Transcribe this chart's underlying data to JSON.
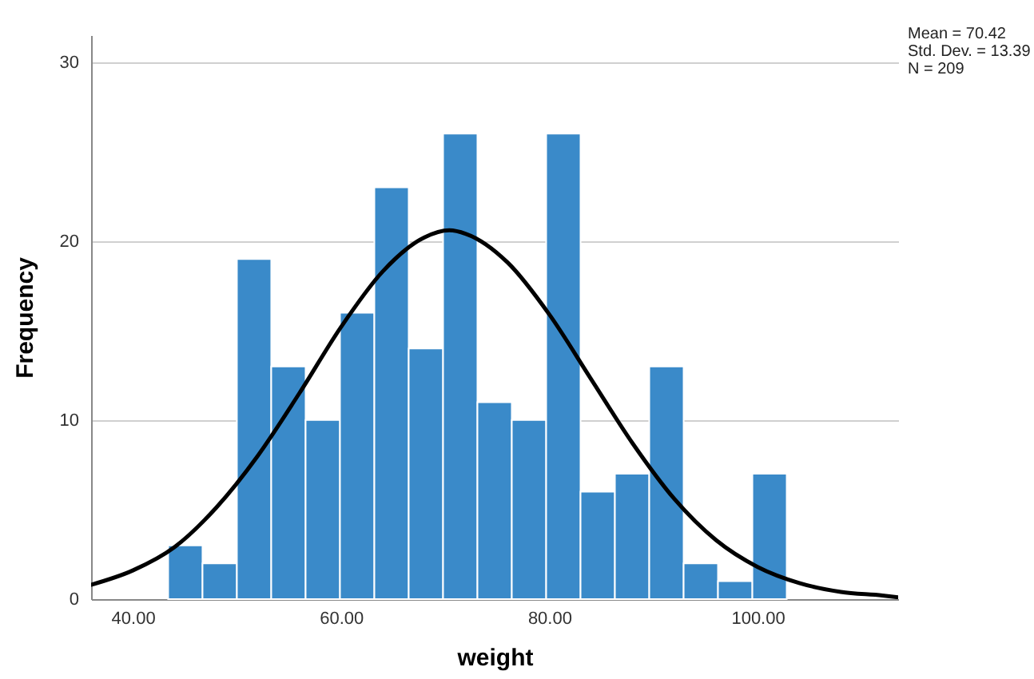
{
  "chart_data": {
    "type": "histogram",
    "xlabel": "weight",
    "ylabel": "Frequency",
    "annotations": [
      "Mean = 70.42",
      "Std. Dev. = 13.39",
      "N = 209"
    ],
    "bins": [
      43.4,
      46.7,
      50.0,
      53.3,
      56.6,
      59.9,
      63.2,
      66.5,
      69.8,
      73.1,
      76.4,
      79.7,
      83.0,
      86.3,
      89.6,
      92.9,
      96.2,
      99.5,
      102.8
    ],
    "series": [
      {
        "color": "#3a8ac9",
        "values": [
          3,
          2,
          19,
          13,
          10,
          16,
          23,
          14,
          26,
          11,
          10,
          26,
          6,
          7,
          13,
          2,
          1,
          7
        ]
      },
      {
        "type": "line",
        "color": "#000000",
        "x": [
          36,
          40,
          44,
          48,
          52,
          56,
          60,
          64,
          68,
          70.4,
          72,
          76,
          80,
          84,
          88,
          92,
          96,
          100,
          104,
          108,
          112,
          113.5
        ],
        "values": [
          0.8,
          1.6,
          2.9,
          5.1,
          8.0,
          11.5,
          15.2,
          18.3,
          20.2,
          20.6,
          20.4,
          18.8,
          15.9,
          12.3,
          8.7,
          5.6,
          3.3,
          1.8,
          0.9,
          0.4,
          0.2,
          0.1
        ]
      }
    ],
    "xlim": [
      36,
      113.5
    ],
    "xticks": [
      {
        "value": 40,
        "label": "40.00"
      },
      {
        "value": 60,
        "label": "60.00"
      },
      {
        "value": 80,
        "label": "80.00"
      },
      {
        "value": 100,
        "label": "100.00"
      }
    ],
    "ylim": [
      0,
      31.5
    ],
    "yticks": [
      0,
      10,
      20,
      30
    ],
    "grid": "y"
  }
}
